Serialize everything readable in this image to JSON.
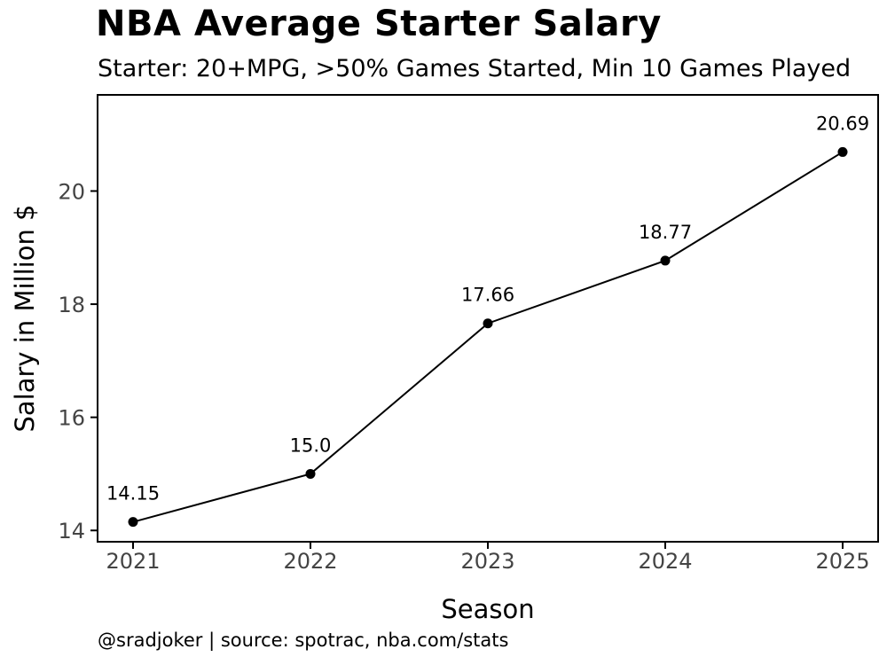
{
  "chart_data": {
    "type": "line",
    "title": "NBA Average Starter Salary",
    "subtitle": "Starter: 20+MPG, >50% Games Started, Min 10 Games Played",
    "xlabel": "Season",
    "ylabel": "Salary in Million $",
    "categories": [
      "2021",
      "2022",
      "2023",
      "2024",
      "2025"
    ],
    "values": [
      14.15,
      15.0,
      17.66,
      18.77,
      20.69
    ],
    "value_labels": [
      "14.15",
      "15.0",
      "17.66",
      "18.77",
      "20.69"
    ],
    "ylim": [
      13.8,
      21.7
    ],
    "yticks": [
      14,
      16,
      18,
      20
    ],
    "grid": false,
    "line_color": "#000000"
  },
  "footer": "@sradjoker | source: spotrac, nba.com/stats"
}
